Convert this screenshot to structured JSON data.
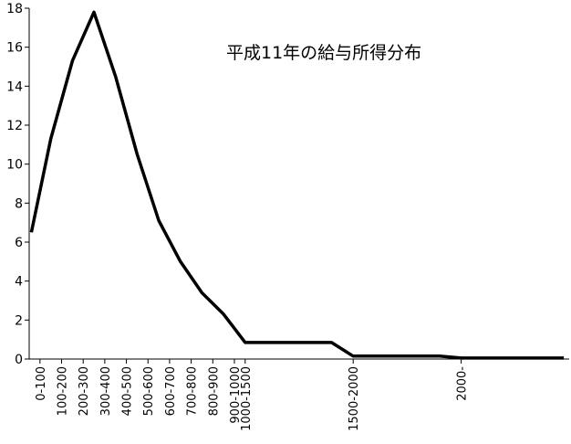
{
  "chart_data": {
    "type": "line",
    "title": "平成11年の給与所得分布",
    "xlabel": "",
    "ylabel": "",
    "ylim": [
      0,
      18
    ],
    "y_ticks": [
      0,
      2,
      4,
      6,
      8,
      10,
      12,
      14,
      16,
      18
    ],
    "grid": false,
    "legend": "none",
    "categories": [
      "0-100",
      "100-200",
      "200-300",
      "300-400",
      "400-500",
      "500-600",
      "600-700",
      "700-800",
      "800-900",
      "900-1000",
      "1000-1500",
      "1500-2000",
      "2000-"
    ],
    "x_ticks": [
      {
        "label": "0-100",
        "x": 50
      },
      {
        "label": "100-200",
        "x": 150
      },
      {
        "label": "200-300",
        "x": 250
      },
      {
        "label": "300-400",
        "x": 350
      },
      {
        "label": "400-500",
        "x": 450
      },
      {
        "label": "500-600",
        "x": 550
      },
      {
        "label": "600-700",
        "x": 650
      },
      {
        "label": "700-800",
        "x": 750
      },
      {
        "label": "800-900",
        "x": 850
      },
      {
        "label": "900-1000",
        "x": 950
      },
      {
        "label": "1000-1500",
        "x": 1000
      },
      {
        "label": "1500-2000",
        "x": 1500
      },
      {
        "label": "2000-",
        "x": 2000
      }
    ],
    "xlim": [
      0,
      2500
    ],
    "series": [
      {
        "x": [
          10,
          100,
          200,
          300,
          400,
          500,
          600,
          700,
          800,
          900,
          1000,
          1100,
          1200,
          1300,
          1400,
          1500,
          1600,
          1700,
          1800,
          1900,
          2000,
          2100,
          2200,
          2300,
          2400,
          2475
        ],
        "values": [
          6.5,
          11.3,
          15.3,
          17.8,
          14.5,
          10.5,
          7.1,
          5.0,
          3.4,
          2.3,
          0.85,
          0.85,
          0.85,
          0.85,
          0.85,
          0.15,
          0.15,
          0.15,
          0.15,
          0.15,
          0.05,
          0.05,
          0.05,
          0.05,
          0.05,
          0.05
        ]
      }
    ],
    "line_color": "#000000"
  }
}
